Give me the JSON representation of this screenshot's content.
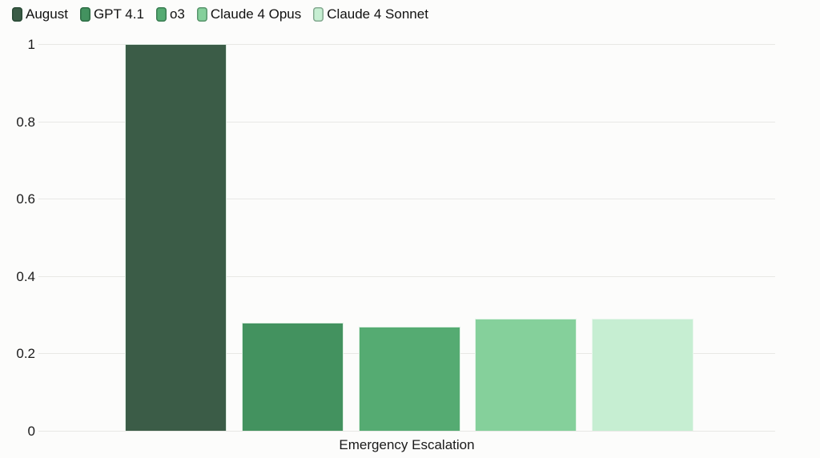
{
  "chart_data": {
    "type": "bar",
    "title": "",
    "xlabel": "",
    "ylabel": "",
    "categories": [
      "Emergency Escalation"
    ],
    "series": [
      {
        "name": "August",
        "values": [
          1.0
        ],
        "color": "#3b5c47"
      },
      {
        "name": "GPT 4.1",
        "values": [
          0.28
        ],
        "color": "#43925f"
      },
      {
        "name": "o3",
        "values": [
          0.27
        ],
        "color": "#55ab72"
      },
      {
        "name": "Claude 4 Opus",
        "values": [
          0.29
        ],
        "color": "#85d09b"
      },
      {
        "name": "Claude 4 Sonnet",
        "values": [
          0.29
        ],
        "color": "#c6eed2"
      }
    ],
    "ylim": [
      0,
      1
    ],
    "yticks": [
      0,
      0.2,
      0.4,
      0.6,
      0.8,
      1
    ],
    "ytick_labels": [
      "0",
      "0.2",
      "0.4",
      "0.6",
      "0.8",
      "1"
    ],
    "grid": true,
    "legend_position": "top-left"
  },
  "colors": {
    "background": "#fcfcfb",
    "gridline": "#e8e8e5",
    "text": "#1a1a1a"
  }
}
